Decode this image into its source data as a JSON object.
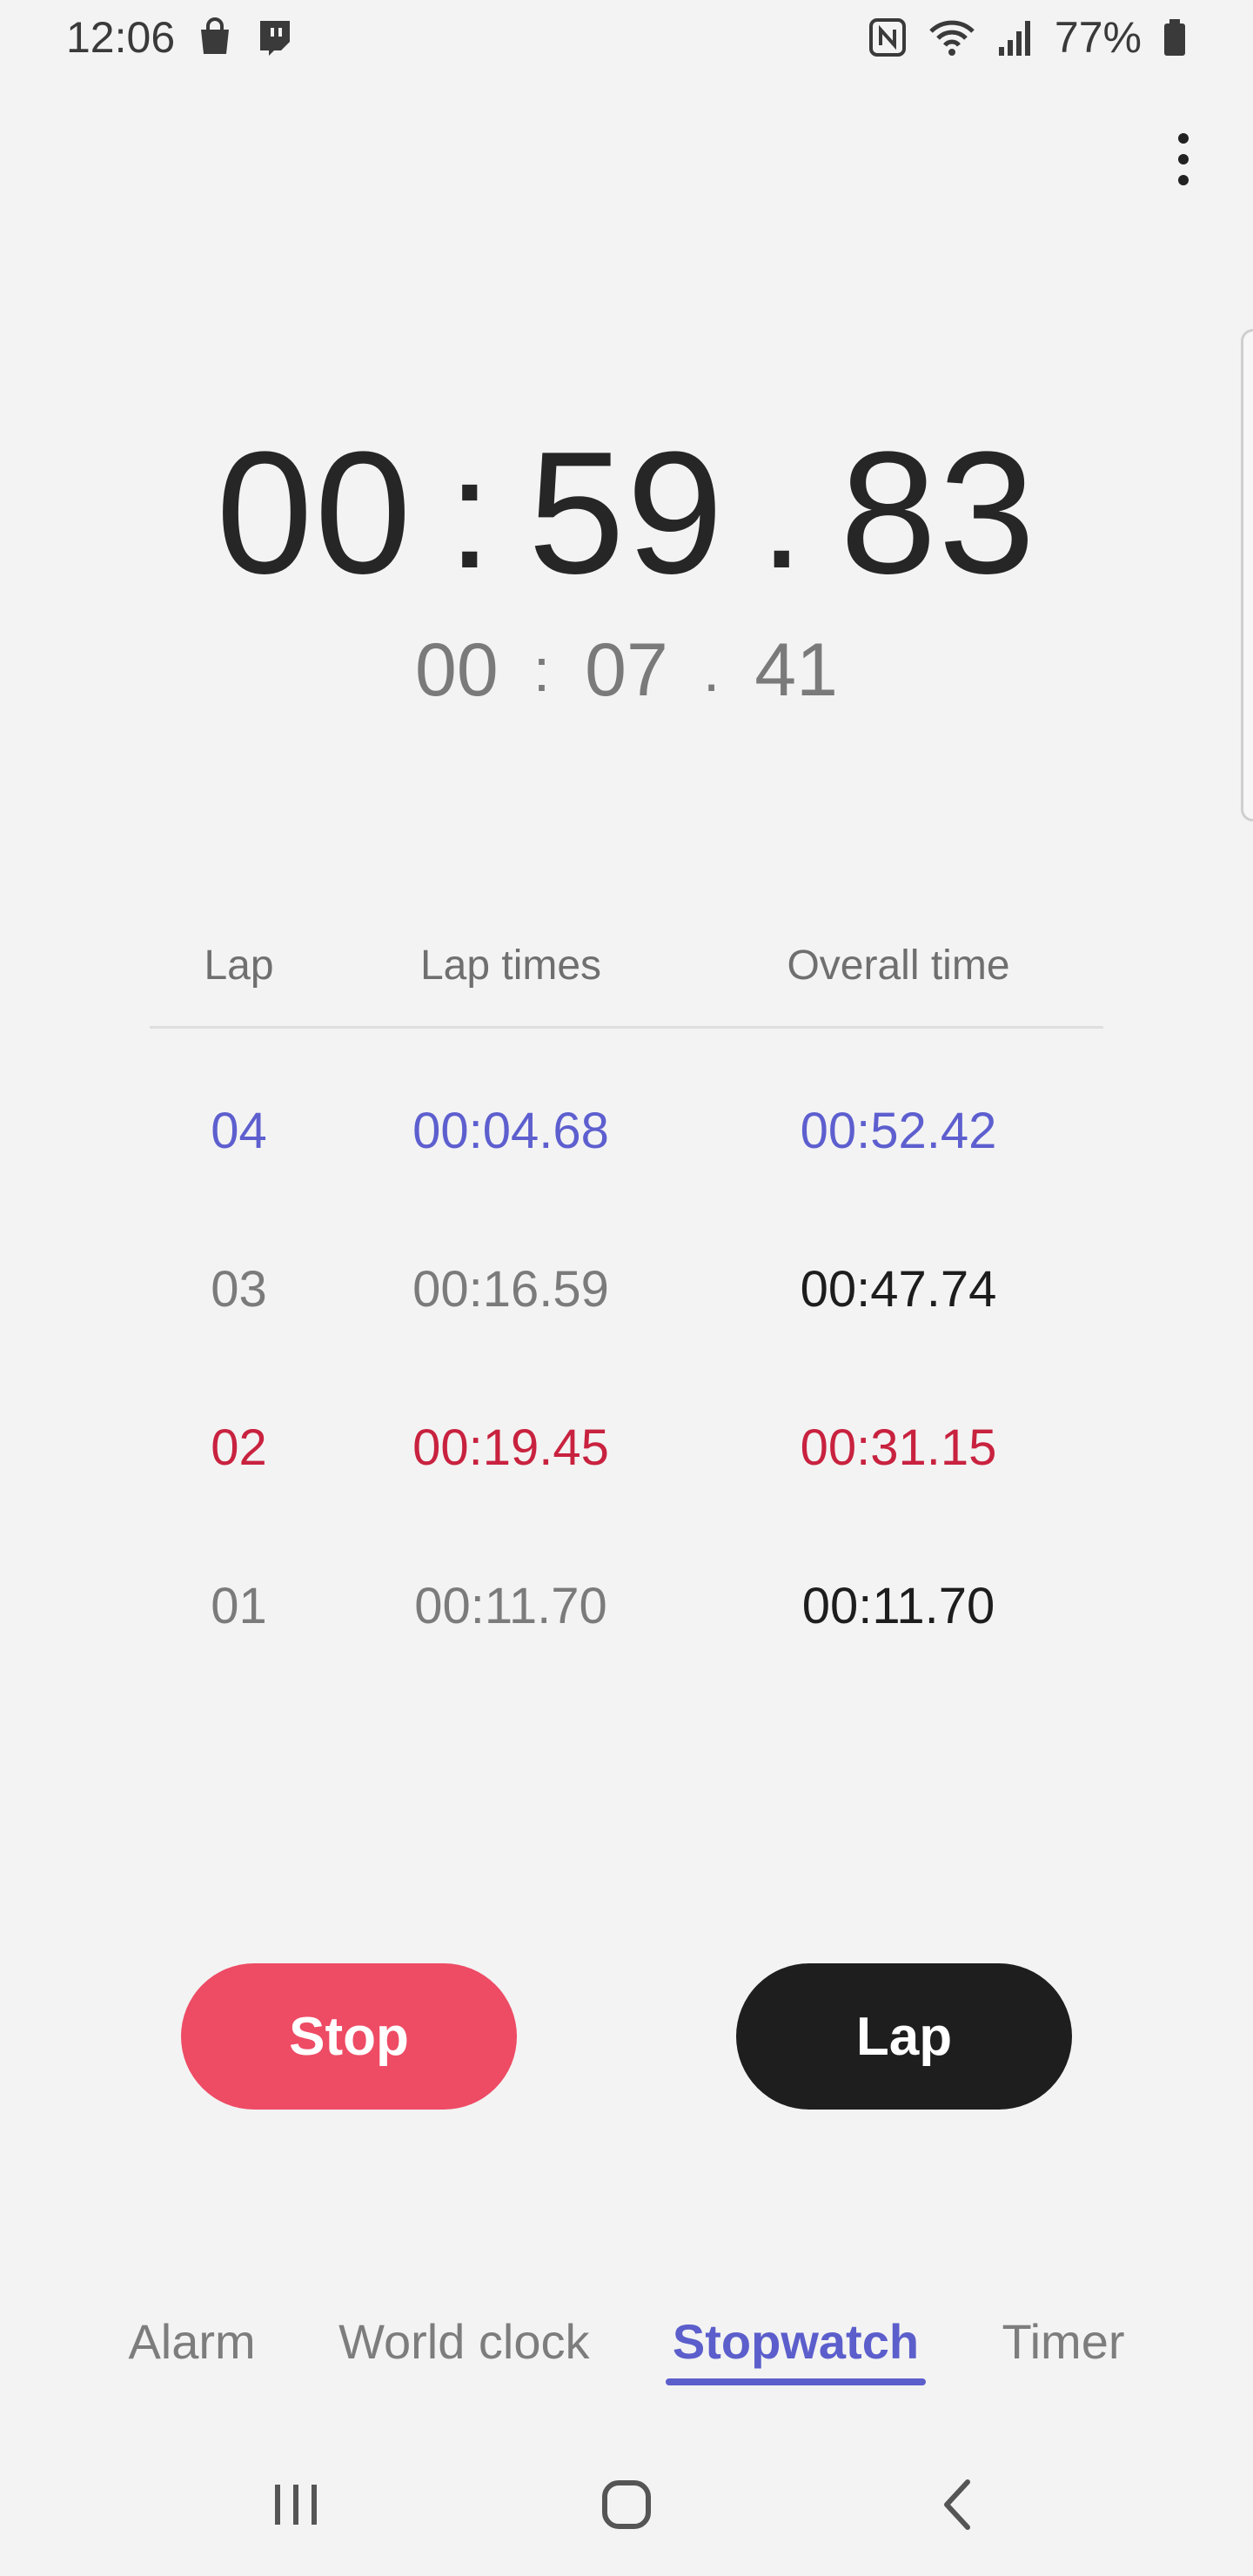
{
  "status_bar": {
    "time": "12:06",
    "battery_percent": "77%",
    "left_icons": [
      "shopping-bag-icon",
      "twitch-icon"
    ],
    "right_icons": [
      "nfc-icon",
      "wifi-icon",
      "signal-icon",
      "battery-icon"
    ]
  },
  "stopwatch": {
    "main": {
      "minutes": "00",
      "seconds": "59",
      "hundredths": "83",
      "sep1": ":",
      "sep2": "."
    },
    "current_lap": {
      "minutes": "00",
      "seconds": "07",
      "hundredths": "41",
      "sep1": ":",
      "sep2": "."
    }
  },
  "laps": {
    "headers": {
      "lap": "Lap",
      "lap_times": "Lap times",
      "overall_time": "Overall time"
    },
    "rows": [
      {
        "lap": "04",
        "lap_time": "00:04.68",
        "overall": "00:52.42",
        "highlight": "fastest"
      },
      {
        "lap": "03",
        "lap_time": "00:16.59",
        "overall": "00:47.74",
        "highlight": ""
      },
      {
        "lap": "02",
        "lap_time": "00:19.45",
        "overall": "00:31.15",
        "highlight": "slowest"
      },
      {
        "lap": "01",
        "lap_time": "00:11.70",
        "overall": "00:11.70",
        "highlight": ""
      }
    ]
  },
  "buttons": {
    "stop": "Stop",
    "lap": "Lap"
  },
  "tabs": [
    {
      "label": "Alarm",
      "active": false
    },
    {
      "label": "World clock",
      "active": false
    },
    {
      "label": "Stopwatch",
      "active": true
    },
    {
      "label": "Timer",
      "active": false
    }
  ],
  "colors": {
    "background": "#f3f3f3",
    "fastest": "#5d5fcf",
    "slowest": "#c8223f",
    "stop_button": "#ee4b65",
    "lap_button": "#1e1e1e",
    "tab_active": "#5b5ecb"
  },
  "nav_icons": [
    "recent-apps-icon",
    "home-icon",
    "back-icon"
  ]
}
